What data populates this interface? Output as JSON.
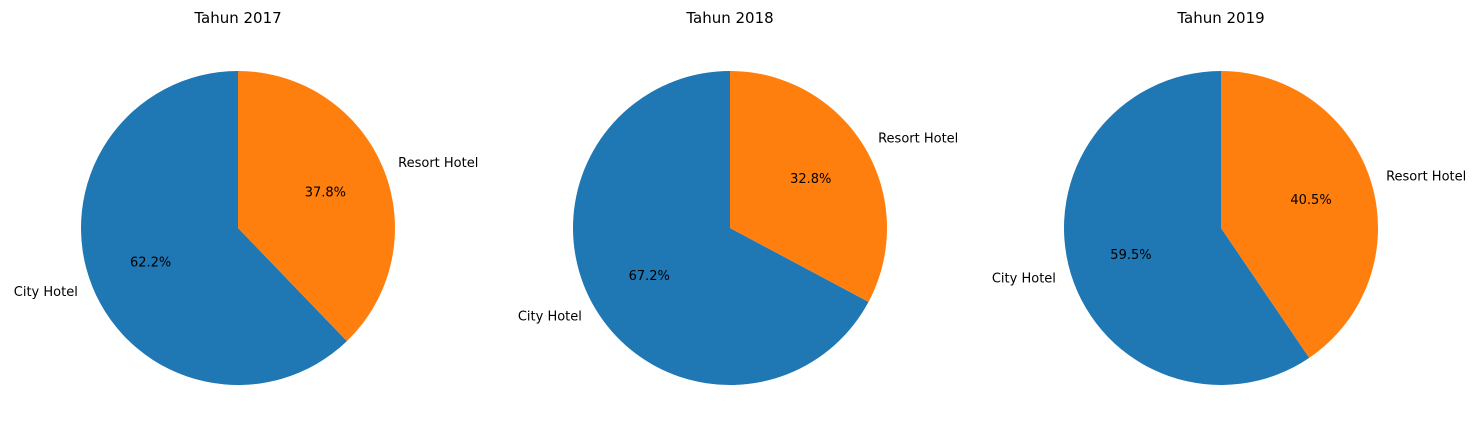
{
  "chart_data": [
    {
      "type": "pie",
      "title": "Tahun 2017",
      "labels": [
        "City Hotel",
        "Resort Hotel"
      ],
      "values": [
        62.2,
        37.8
      ],
      "autopct": [
        "62.2%",
        "37.8%"
      ],
      "colors": [
        "#1f77b4",
        "#ff7f0e"
      ],
      "start_angle": 90,
      "direction": "counterclockwise"
    },
    {
      "type": "pie",
      "title": "Tahun 2018",
      "labels": [
        "City Hotel",
        "Resort Hotel"
      ],
      "values": [
        67.2,
        32.8
      ],
      "autopct": [
        "67.2%",
        "32.8%"
      ],
      "colors": [
        "#1f77b4",
        "#ff7f0e"
      ],
      "start_angle": 90,
      "direction": "counterclockwise"
    },
    {
      "type": "pie",
      "title": "Tahun 2019",
      "labels": [
        "City Hotel",
        "Resort Hotel"
      ],
      "values": [
        59.5,
        40.5
      ],
      "autopct": [
        "59.5%",
        "40.5%"
      ],
      "colors": [
        "#1f77b4",
        "#ff7f0e"
      ],
      "start_angle": 90,
      "direction": "counterclockwise"
    }
  ]
}
